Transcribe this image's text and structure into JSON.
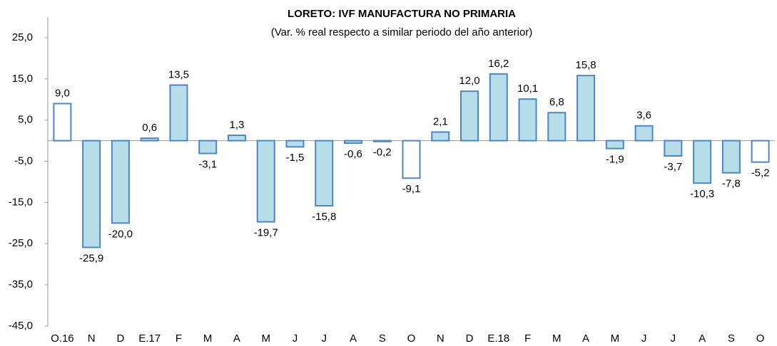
{
  "chart_data": {
    "type": "bar",
    "title": "LORETO: IVF MANUFACTURA NO PRIMARIA",
    "subtitle": "(Var. % real respecto a similar periodo del año anterior)",
    "categories": [
      "O.16",
      "N",
      "D",
      "E.17",
      "F",
      "M",
      "A",
      "M",
      "J",
      "J",
      "A",
      "S",
      "O",
      "N",
      "D",
      "E.18",
      "F",
      "M",
      "A",
      "M",
      "J",
      "J",
      "A",
      "S",
      "O"
    ],
    "values": [
      9.0,
      -25.9,
      -20.0,
      0.6,
      13.5,
      -3.1,
      1.3,
      -19.7,
      -1.5,
      -15.8,
      -0.6,
      -0.2,
      -9.1,
      2.1,
      12.0,
      16.2,
      10.1,
      6.8,
      15.8,
      -1.9,
      3.6,
      -3.7,
      -10.3,
      -7.8,
      -5.2
    ],
    "value_labels": [
      "9,0",
      "-25,9",
      "-20,0",
      "0,6",
      "13,5",
      "-3,1",
      "1,3",
      "-19,7",
      "-1,5",
      "-15,8",
      "-0,6",
      "-0,2",
      "-9,1",
      "2,1",
      "12,0",
      "16,2",
      "10,1",
      "6,8",
      "15,8",
      "-1,9",
      "3,6",
      "-3,7",
      "-10,3",
      "-7,8",
      "-5,2"
    ],
    "colors": [
      "#ffffff",
      "#b7dee8",
      "#b7dee8",
      "#b7dee8",
      "#b7dee8",
      "#b7dee8",
      "#b7dee8",
      "#b7dee8",
      "#b7dee8",
      "#b7dee8",
      "#b7dee8",
      "#b7dee8",
      "#ffffff",
      "#b7dee8",
      "#b7dee8",
      "#b7dee8",
      "#b7dee8",
      "#b7dee8",
      "#b7dee8",
      "#b7dee8",
      "#b7dee8",
      "#b7dee8",
      "#b7dee8",
      "#b7dee8",
      "#ffffff"
    ],
    "edge_color": "#4a86c8",
    "ylim": [
      -45,
      30
    ],
    "yticks": [
      {
        "value": 25,
        "label": "25,0"
      },
      {
        "value": 15,
        "label": "15,0"
      },
      {
        "value": 5,
        "label": "5,0"
      },
      {
        "value": -5,
        "label": "-5,0"
      },
      {
        "value": -15,
        "label": "-15,0"
      },
      {
        "value": -25,
        "label": "-25,0"
      },
      {
        "value": -35,
        "label": "-35,0"
      },
      {
        "value": -45,
        "label": "-45,0"
      }
    ],
    "grid": false
  }
}
